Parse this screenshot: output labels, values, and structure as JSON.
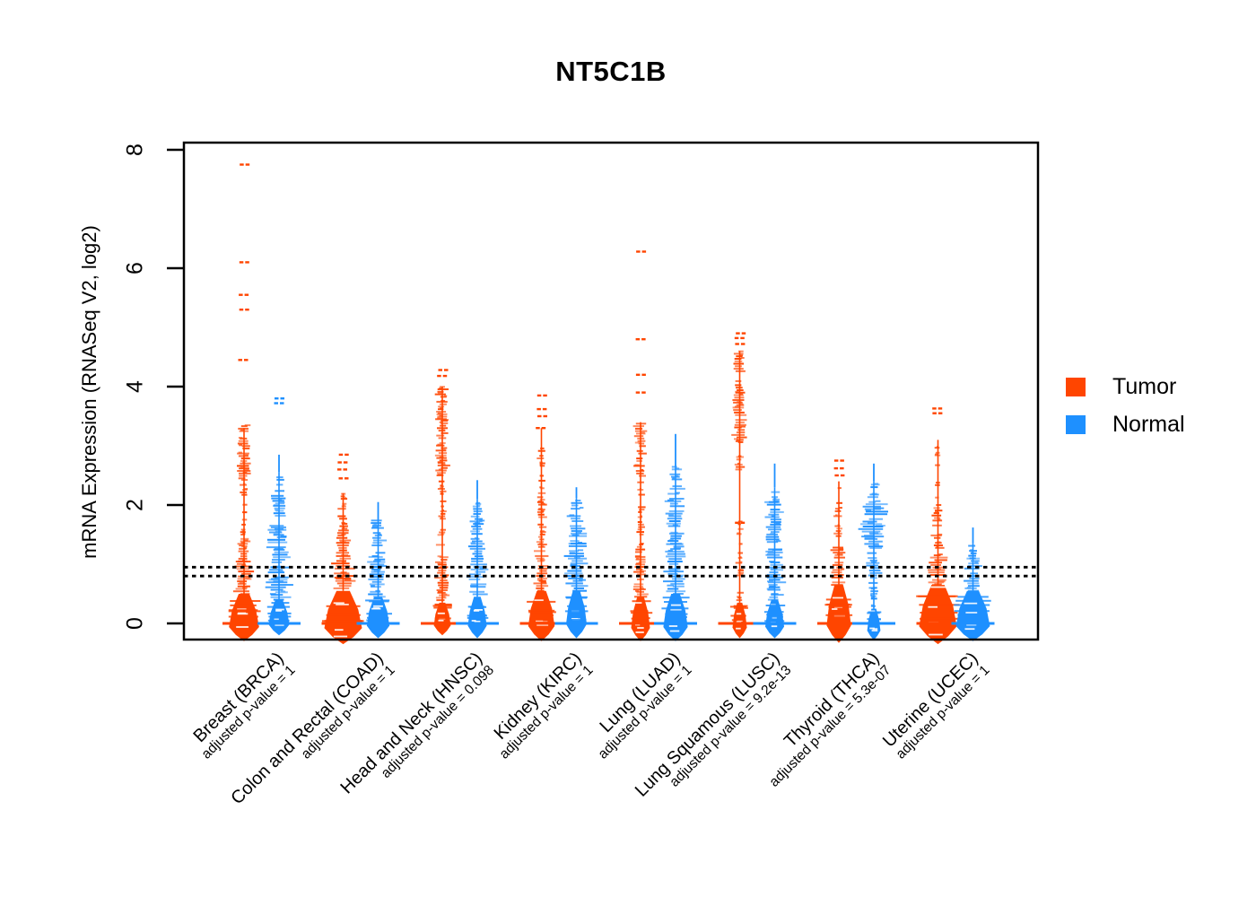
{
  "chart_data": {
    "type": "violin-strip",
    "title": "NT5C1B",
    "ylabel": "mRNA Expression (RNASeq V2, log2)",
    "yticks": [
      0,
      2,
      4,
      6,
      8
    ],
    "ylim": [
      -0.45,
      8.2
    ],
    "grid": false,
    "legend_position": "right",
    "reference_lines": [
      0.8,
      0.95
    ],
    "legend": [
      {
        "label": "Tumor",
        "color": "#FF4500"
      },
      {
        "label": "Normal",
        "color": "#1E90FF"
      }
    ],
    "groups": [
      {
        "label": "Breast (BRCA)",
        "pvalue_label": "adjusted p-value = 1",
        "tumor": {
          "min": -0.3,
          "blob_top": 0.5,
          "blob_w": 0.8,
          "spine": [
            0.5,
            3.3
          ],
          "segments": [
            [
              0.5,
              1.05,
              0.4,
              0.95
            ],
            [
              1.05,
              1.5,
              0.25,
              0.85
            ],
            [
              1.5,
              2.45,
              0.16,
              0.45
            ],
            [
              2.45,
              3.35,
              0.3,
              0.9
            ]
          ],
          "tip": null,
          "outliers": [
            4.45,
            5.3,
            5.55,
            6.1,
            7.75
          ]
        },
        "normal": {
          "min": -0.2,
          "blob_top": 0.4,
          "blob_w": 0.55,
          "spine": [
            0.4,
            2.55
          ],
          "segments": [
            [
              0.4,
              0.95,
              0.5,
              0.95
            ],
            [
              0.95,
              1.65,
              0.45,
              0.9
            ],
            [
              1.65,
              2.3,
              0.33,
              0.8
            ],
            [
              2.3,
              2.55,
              0.2,
              0.6
            ]
          ],
          "tip": [
            2.55,
            2.85
          ],
          "outliers": [
            3.72,
            3.8
          ]
        }
      },
      {
        "label": "Colon and Rectal (COAD)",
        "pvalue_label": "adjusted p-value = 1",
        "tumor": {
          "min": -0.35,
          "blob_top": 0.55,
          "blob_w": 1.0,
          "spine": [
            0.55,
            2.2
          ],
          "segments": [
            [
              0.55,
              1.15,
              0.45,
              0.9
            ],
            [
              1.15,
              1.6,
              0.3,
              0.8
            ],
            [
              1.6,
              2.2,
              0.2,
              0.55
            ]
          ],
          "tip": null,
          "outliers": [
            2.45,
            2.6,
            2.72,
            2.85
          ]
        },
        "normal": {
          "min": -0.25,
          "blob_top": 0.45,
          "blob_w": 0.6,
          "spine": [
            0.45,
            1.75
          ],
          "segments": [
            [
              0.45,
              1.15,
              0.42,
              0.9
            ],
            [
              1.15,
              1.75,
              0.3,
              0.75
            ]
          ],
          "tip": [
            1.75,
            2.05
          ],
          "outliers": []
        }
      },
      {
        "label": "Head and Neck (HNSC)",
        "pvalue_label": "adjusted p-value = 0.098",
        "tumor": {
          "min": -0.2,
          "blob_top": 0.35,
          "blob_w": 0.45,
          "spine": [
            0.35,
            4.0
          ],
          "segments": [
            [
              0.35,
              0.95,
              0.3,
              0.85
            ],
            [
              0.95,
              1.6,
              0.25,
              0.7
            ],
            [
              1.6,
              2.5,
              0.16,
              0.45
            ],
            [
              2.5,
              3.45,
              0.3,
              0.9
            ],
            [
              3.45,
              4.05,
              0.26,
              0.8
            ]
          ],
          "tip": null,
          "outliers": [
            4.18,
            4.28
          ]
        },
        "normal": {
          "min": -0.25,
          "blob_top": 0.45,
          "blob_w": 0.5,
          "spine": [
            0.45,
            2.1
          ],
          "segments": [
            [
              0.45,
              1.05,
              0.4,
              0.9
            ],
            [
              1.05,
              1.85,
              0.35,
              0.85
            ],
            [
              1.85,
              2.1,
              0.22,
              0.6
            ]
          ],
          "tip": [
            2.1,
            2.42
          ],
          "outliers": []
        }
      },
      {
        "label": "Kidney (KIRC)",
        "pvalue_label": "adjusted p-value = 1",
        "tumor": {
          "min": -0.3,
          "blob_top": 0.55,
          "blob_w": 0.7,
          "spine": [
            0.55,
            3.3
          ],
          "segments": [
            [
              0.55,
              1.25,
              0.32,
              0.8
            ],
            [
              1.25,
              2.2,
              0.22,
              0.6
            ],
            [
              2.2,
              3.0,
              0.17,
              0.45
            ]
          ],
          "tip": null,
          "outliers": [
            3.3,
            3.5,
            3.62,
            3.85
          ]
        },
        "normal": {
          "min": -0.25,
          "blob_top": 0.55,
          "blob_w": 0.55,
          "spine": [
            0.55,
            2.12
          ],
          "segments": [
            [
              0.55,
              1.35,
              0.45,
              0.9
            ],
            [
              1.35,
              1.95,
              0.4,
              0.85
            ],
            [
              1.95,
              2.12,
              0.25,
              0.6
            ]
          ],
          "tip": [
            2.12,
            2.3
          ],
          "outliers": []
        }
      },
      {
        "label": "Lung (LUAD)",
        "pvalue_label": "adjusted p-value = 1",
        "tumor": {
          "min": -0.3,
          "blob_top": 0.45,
          "blob_w": 0.5,
          "spine": [
            0.45,
            3.4
          ],
          "segments": [
            [
              0.45,
              1.25,
              0.3,
              0.8
            ],
            [
              1.25,
              2.45,
              0.17,
              0.5
            ],
            [
              2.45,
              3.4,
              0.28,
              0.85
            ]
          ],
          "tip": null,
          "outliers": [
            3.9,
            4.2,
            4.8,
            6.28
          ]
        },
        "normal": {
          "min": -0.3,
          "blob_top": 0.5,
          "blob_w": 0.65,
          "spine": [
            0.5,
            2.65
          ],
          "segments": [
            [
              0.5,
              1.35,
              0.45,
              0.9
            ],
            [
              1.35,
              2.35,
              0.38,
              0.85
            ],
            [
              2.35,
              2.65,
              0.24,
              0.6
            ]
          ],
          "tip": [
            2.65,
            3.2
          ],
          "outliers": []
        }
      },
      {
        "label": "Lung Squamous (LUSC)",
        "pvalue_label": "adjusted p-value = 9.2e-13",
        "tumor": {
          "min": -0.25,
          "blob_top": 0.35,
          "blob_w": 0.38,
          "spine": [
            0.35,
            4.6
          ],
          "segments": [
            [
              0.35,
              1.3,
              0.17,
              0.45
            ],
            [
              1.3,
              1.75,
              0.14,
              0.3
            ],
            [
              2.6,
              3.1,
              0.2,
              0.6
            ],
            [
              3.1,
              4.05,
              0.3,
              0.95
            ],
            [
              4.05,
              4.6,
              0.24,
              0.85
            ]
          ],
          "tip": null,
          "outliers": [
            1.7,
            4.72,
            4.82,
            4.9
          ]
        },
        "normal": {
          "min": -0.25,
          "blob_top": 0.4,
          "blob_w": 0.5,
          "spine": [
            0.4,
            2.3
          ],
          "segments": [
            [
              0.4,
              1.25,
              0.4,
              0.9
            ],
            [
              1.25,
              2.05,
              0.35,
              0.85
            ],
            [
              2.05,
              2.3,
              0.22,
              0.55
            ]
          ],
          "tip": [
            2.3,
            2.7
          ],
          "outliers": []
        }
      },
      {
        "label": "Thyroid (THCA)",
        "pvalue_label": "adjusted p-value = 5.3e-07",
        "tumor": {
          "min": -0.33,
          "blob_top": 0.65,
          "blob_w": 0.65,
          "spine": [
            0.65,
            2.4
          ],
          "segments": [
            [
              0.65,
              1.35,
              0.3,
              0.75
            ],
            [
              1.35,
              1.95,
              0.2,
              0.5
            ],
            [
              1.95,
              2.4,
              0.15,
              0.45
            ]
          ],
          "tip": null,
          "outliers": [
            2.5,
            2.62,
            2.75
          ]
        },
        "normal": {
          "min": -0.28,
          "blob_top": 0.25,
          "blob_w": 0.35,
          "spine": [
            0.25,
            2.4
          ],
          "segments": [
            [
              0.25,
              0.6,
              0.18,
              0.7
            ],
            [
              0.6,
              1.3,
              0.3,
              0.8
            ],
            [
              1.3,
              2.05,
              0.55,
              0.95
            ],
            [
              2.05,
              2.4,
              0.3,
              0.8
            ]
          ],
          "tip": [
            2.4,
            2.7
          ],
          "outliers": []
        }
      },
      {
        "label": "Uterine (UCEC)",
        "pvalue_label": "adjusted p-value = 1",
        "tumor": {
          "min": -0.35,
          "blob_top": 0.65,
          "blob_w": 1.0,
          "spine": [
            0.65,
            3.1
          ],
          "segments": [
            [
              0.65,
              1.15,
              0.4,
              0.85
            ],
            [
              1.15,
              2.0,
              0.25,
              0.6
            ],
            [
              2.0,
              3.1,
              0.15,
              0.4
            ]
          ],
          "tip": null,
          "outliers": [
            3.55,
            3.63
          ]
        },
        "normal": {
          "min": -0.3,
          "blob_top": 0.55,
          "blob_w": 0.9,
          "spine": [
            0.55,
            1.35
          ],
          "segments": [
            [
              0.55,
              1.1,
              0.35,
              0.8
            ],
            [
              1.1,
              1.35,
              0.2,
              0.5
            ]
          ],
          "tip": [
            1.35,
            1.62
          ],
          "outliers": []
        }
      }
    ]
  }
}
